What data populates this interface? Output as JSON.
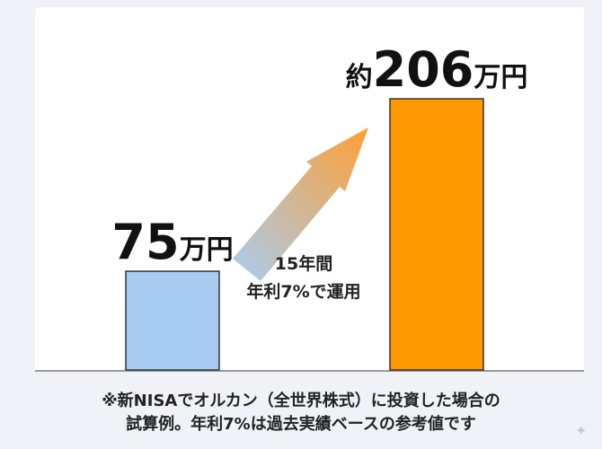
{
  "chart_data": {
    "type": "bar",
    "categories": [
      "",
      ""
    ],
    "values": [
      75,
      206
    ],
    "ylim": [
      0,
      300
    ],
    "grid": false,
    "legend": "none",
    "colors": [
      "#a8ccf2",
      "#ff9800"
    ],
    "data_labels": [
      {
        "prefix": "",
        "number": "75",
        "unit": "万円"
      },
      {
        "prefix": "約",
        "number": "206",
        "unit": "万円"
      }
    ],
    "annotation": {
      "line1": "15年間",
      "line2": "年利7%で運用"
    }
  },
  "notes": {
    "line1": "※新NISAでオルカン（全世界株式）に投資した場合の",
    "line2": "試算例。年利7%は過去実績ベースの参考値です"
  },
  "icons": {
    "corner": "sparkle-icon",
    "arrow": "gradient-arrow-icon"
  }
}
